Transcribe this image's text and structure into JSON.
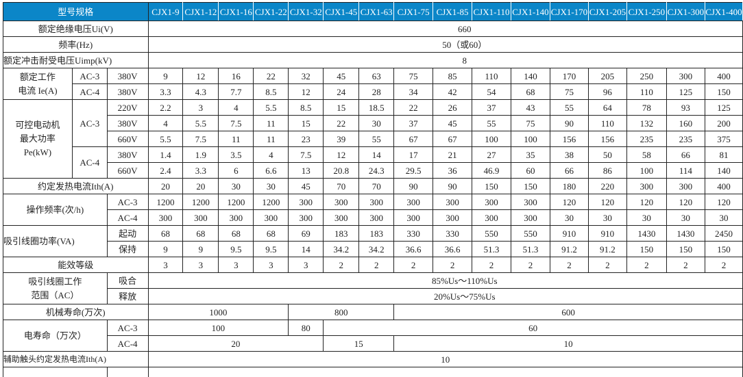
{
  "header": {
    "title": "型号规格",
    "models": [
      "CJX1-9",
      "CJX1-12",
      "CJX1-16",
      "CJX1-22",
      "CJX1-32",
      "CJX1-45",
      "CJX1-63",
      "CJX1-75",
      "CJX1-85",
      "CJX1-110",
      "CJX1-140",
      "CJX1-170",
      "CJX1-205",
      "CJX1-250",
      "CJX1-300",
      "CJX1-400"
    ],
    "color": "#0b86c8"
  },
  "insulation": {
    "label": "额定绝缘电压Ui(V)",
    "value": "660"
  },
  "frequency": {
    "label": "频率(Hz)",
    "value": "50（或60）"
  },
  "impulse": {
    "label": "额定冲击耐受电压Uimp(kV)",
    "value": "8"
  },
  "rated_current": {
    "label_line1": "额定工作",
    "label_line2": "电流 Ie(A)",
    "rows": [
      {
        "category": "AC-3",
        "voltage": "380V",
        "values": [
          "9",
          "12",
          "16",
          "22",
          "32",
          "45",
          "63",
          "75",
          "85",
          "110",
          "140",
          "170",
          "205",
          "250",
          "300",
          "400"
        ]
      },
      {
        "category": "AC-4",
        "voltage": "380V",
        "values": [
          "3.3",
          "4.3",
          "7.7",
          "8.5",
          "12",
          "24",
          "28",
          "34",
          "42",
          "54",
          "68",
          "75",
          "96",
          "110",
          "125",
          "150"
        ]
      }
    ]
  },
  "motor_power": {
    "label_line1": "可控电动机",
    "label_line2": "最大功率",
    "label_line3": "Pe(kW)",
    "ac3": "AC-3",
    "ac4": "AC-4",
    "rows": [
      {
        "voltage": "220V",
        "values": [
          "2.2",
          "3",
          "4",
          "5.5",
          "8.5",
          "15",
          "18.5",
          "22",
          "26",
          "37",
          "43",
          "55",
          "64",
          "78",
          "93",
          "125"
        ]
      },
      {
        "voltage": "380V",
        "values": [
          "4",
          "5.5",
          "7.5",
          "11",
          "15",
          "22",
          "30",
          "37",
          "45",
          "55",
          "75",
          "90",
          "110",
          "132",
          "160",
          "200"
        ]
      },
      {
        "voltage": "660V",
        "values": [
          "5.5",
          "7.5",
          "11",
          "11",
          "23",
          "39",
          "55",
          "67",
          "67",
          "100",
          "100",
          "156",
          "156",
          "235",
          "235",
          "375"
        ]
      },
      {
        "voltage": "380V",
        "values": [
          "1.4",
          "1.9",
          "3.5",
          "4",
          "7.5",
          "12",
          "14",
          "17",
          "21",
          "27",
          "35",
          "38",
          "50",
          "58",
          "66",
          "81"
        ]
      },
      {
        "voltage": "660V",
        "values": [
          "2.4",
          "3.3",
          "6",
          "6.6",
          "13",
          "20.8",
          "24.3",
          "29.5",
          "36",
          "46.9",
          "60",
          "66",
          "86",
          "100",
          "114",
          "140"
        ]
      }
    ]
  },
  "thermal_current": {
    "label": "约定发热电流Ith(A)",
    "values": [
      "20",
      "20",
      "30",
      "30",
      "45",
      "70",
      "70",
      "90",
      "90",
      "150",
      "150",
      "180",
      "220",
      "300",
      "300",
      "400"
    ]
  },
  "op_frequency": {
    "label": "操作频率(次/h)",
    "rows": [
      {
        "category": "AC-3",
        "values": [
          "1200",
          "1200",
          "1200",
          "1200",
          "300",
          "300",
          "300",
          "300",
          "300",
          "300",
          "300",
          "120",
          "120",
          "120",
          "120",
          "120"
        ]
      },
      {
        "category": "AC-4",
        "values": [
          "300",
          "300",
          "300",
          "300",
          "300",
          "300",
          "300",
          "300",
          "300",
          "300",
          "300",
          "30",
          "30",
          "30",
          "30",
          "30"
        ]
      }
    ]
  },
  "coil_power": {
    "label": "吸引线圈功率(VA)",
    "rows": [
      {
        "category": "起动",
        "values": [
          "68",
          "68",
          "68",
          "68",
          "69",
          "183",
          "183",
          "330",
          "330",
          "550",
          "550",
          "910",
          "910",
          "1430",
          "1430",
          "2450"
        ]
      },
      {
        "category": "保持",
        "values": [
          "9",
          "9",
          "9.5",
          "9.5",
          "14",
          "34.2",
          "34.2",
          "36.6",
          "36.6",
          "51.3",
          "51.3",
          "91.2",
          "91.2",
          "150",
          "150",
          "150"
        ]
      }
    ]
  },
  "efficiency": {
    "label": "能效等级",
    "values": [
      "3",
      "3",
      "3",
      "3",
      "3",
      "2",
      "2",
      "2",
      "2",
      "2",
      "2",
      "2",
      "2",
      "2",
      "2",
      "2"
    ]
  },
  "coil_range": {
    "label_line1": "吸引线圈工作",
    "label_line2": "范围（AC）",
    "pickup_label": "吸合",
    "pickup_value": "85%Us～110%Us",
    "release_label": "释放",
    "release_value": "20%Us～75%Us"
  },
  "mech_life": {
    "label": "机械寿命(万次)",
    "values": [
      "1000",
      "800",
      "600"
    ]
  },
  "elec_life": {
    "label": "电寿命（万次）",
    "ac3": {
      "category": "AC-3",
      "values": [
        "100",
        "80",
        "60"
      ]
    },
    "ac4": {
      "category": "AC-4",
      "values": [
        "20",
        "15",
        "10"
      ]
    }
  },
  "aux_current": {
    "label": "辅助触头约定发热电流Ith(A)",
    "value": "10"
  }
}
